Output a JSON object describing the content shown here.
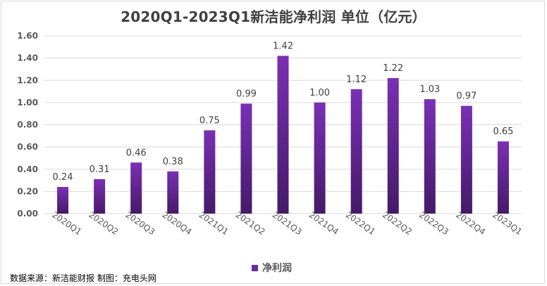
{
  "chart_data": {
    "type": "bar",
    "title": "2020Q1-2023Q1新洁能净利润 单位（亿元）",
    "categories": [
      "2020Q1",
      "2020Q2",
      "2020Q3",
      "2020Q4",
      "2021Q1",
      "2021Q2",
      "2021Q3",
      "2021Q4",
      "2022Q1",
      "2022Q2",
      "2022Q3",
      "2022Q4",
      "2023Q1"
    ],
    "series": [
      {
        "name": "净利润",
        "values": [
          0.24,
          0.31,
          0.46,
          0.38,
          0.75,
          0.99,
          1.42,
          1.0,
          1.12,
          1.22,
          1.03,
          0.97,
          0.65
        ],
        "color": "#7030a0"
      }
    ],
    "data_labels": [
      "0.24",
      "0.31",
      "0.46",
      "0.38",
      "0.75",
      "0.99",
      "1.42",
      "1.00",
      "1.12",
      "1.22",
      "1.03",
      "0.97",
      "0.65"
    ],
    "yticks": [
      "0.00",
      "0.20",
      "0.40",
      "0.60",
      "0.80",
      "1.00",
      "1.20",
      "1.40",
      "1.60"
    ],
    "ylim": [
      0,
      1.6
    ],
    "xlabel": "",
    "ylabel": "",
    "grid": true,
    "legend": "bottom-center"
  },
  "legend": {
    "label": "净利润"
  },
  "footer": {
    "source": "数据来源：新洁能财报 制图：充电头网"
  }
}
